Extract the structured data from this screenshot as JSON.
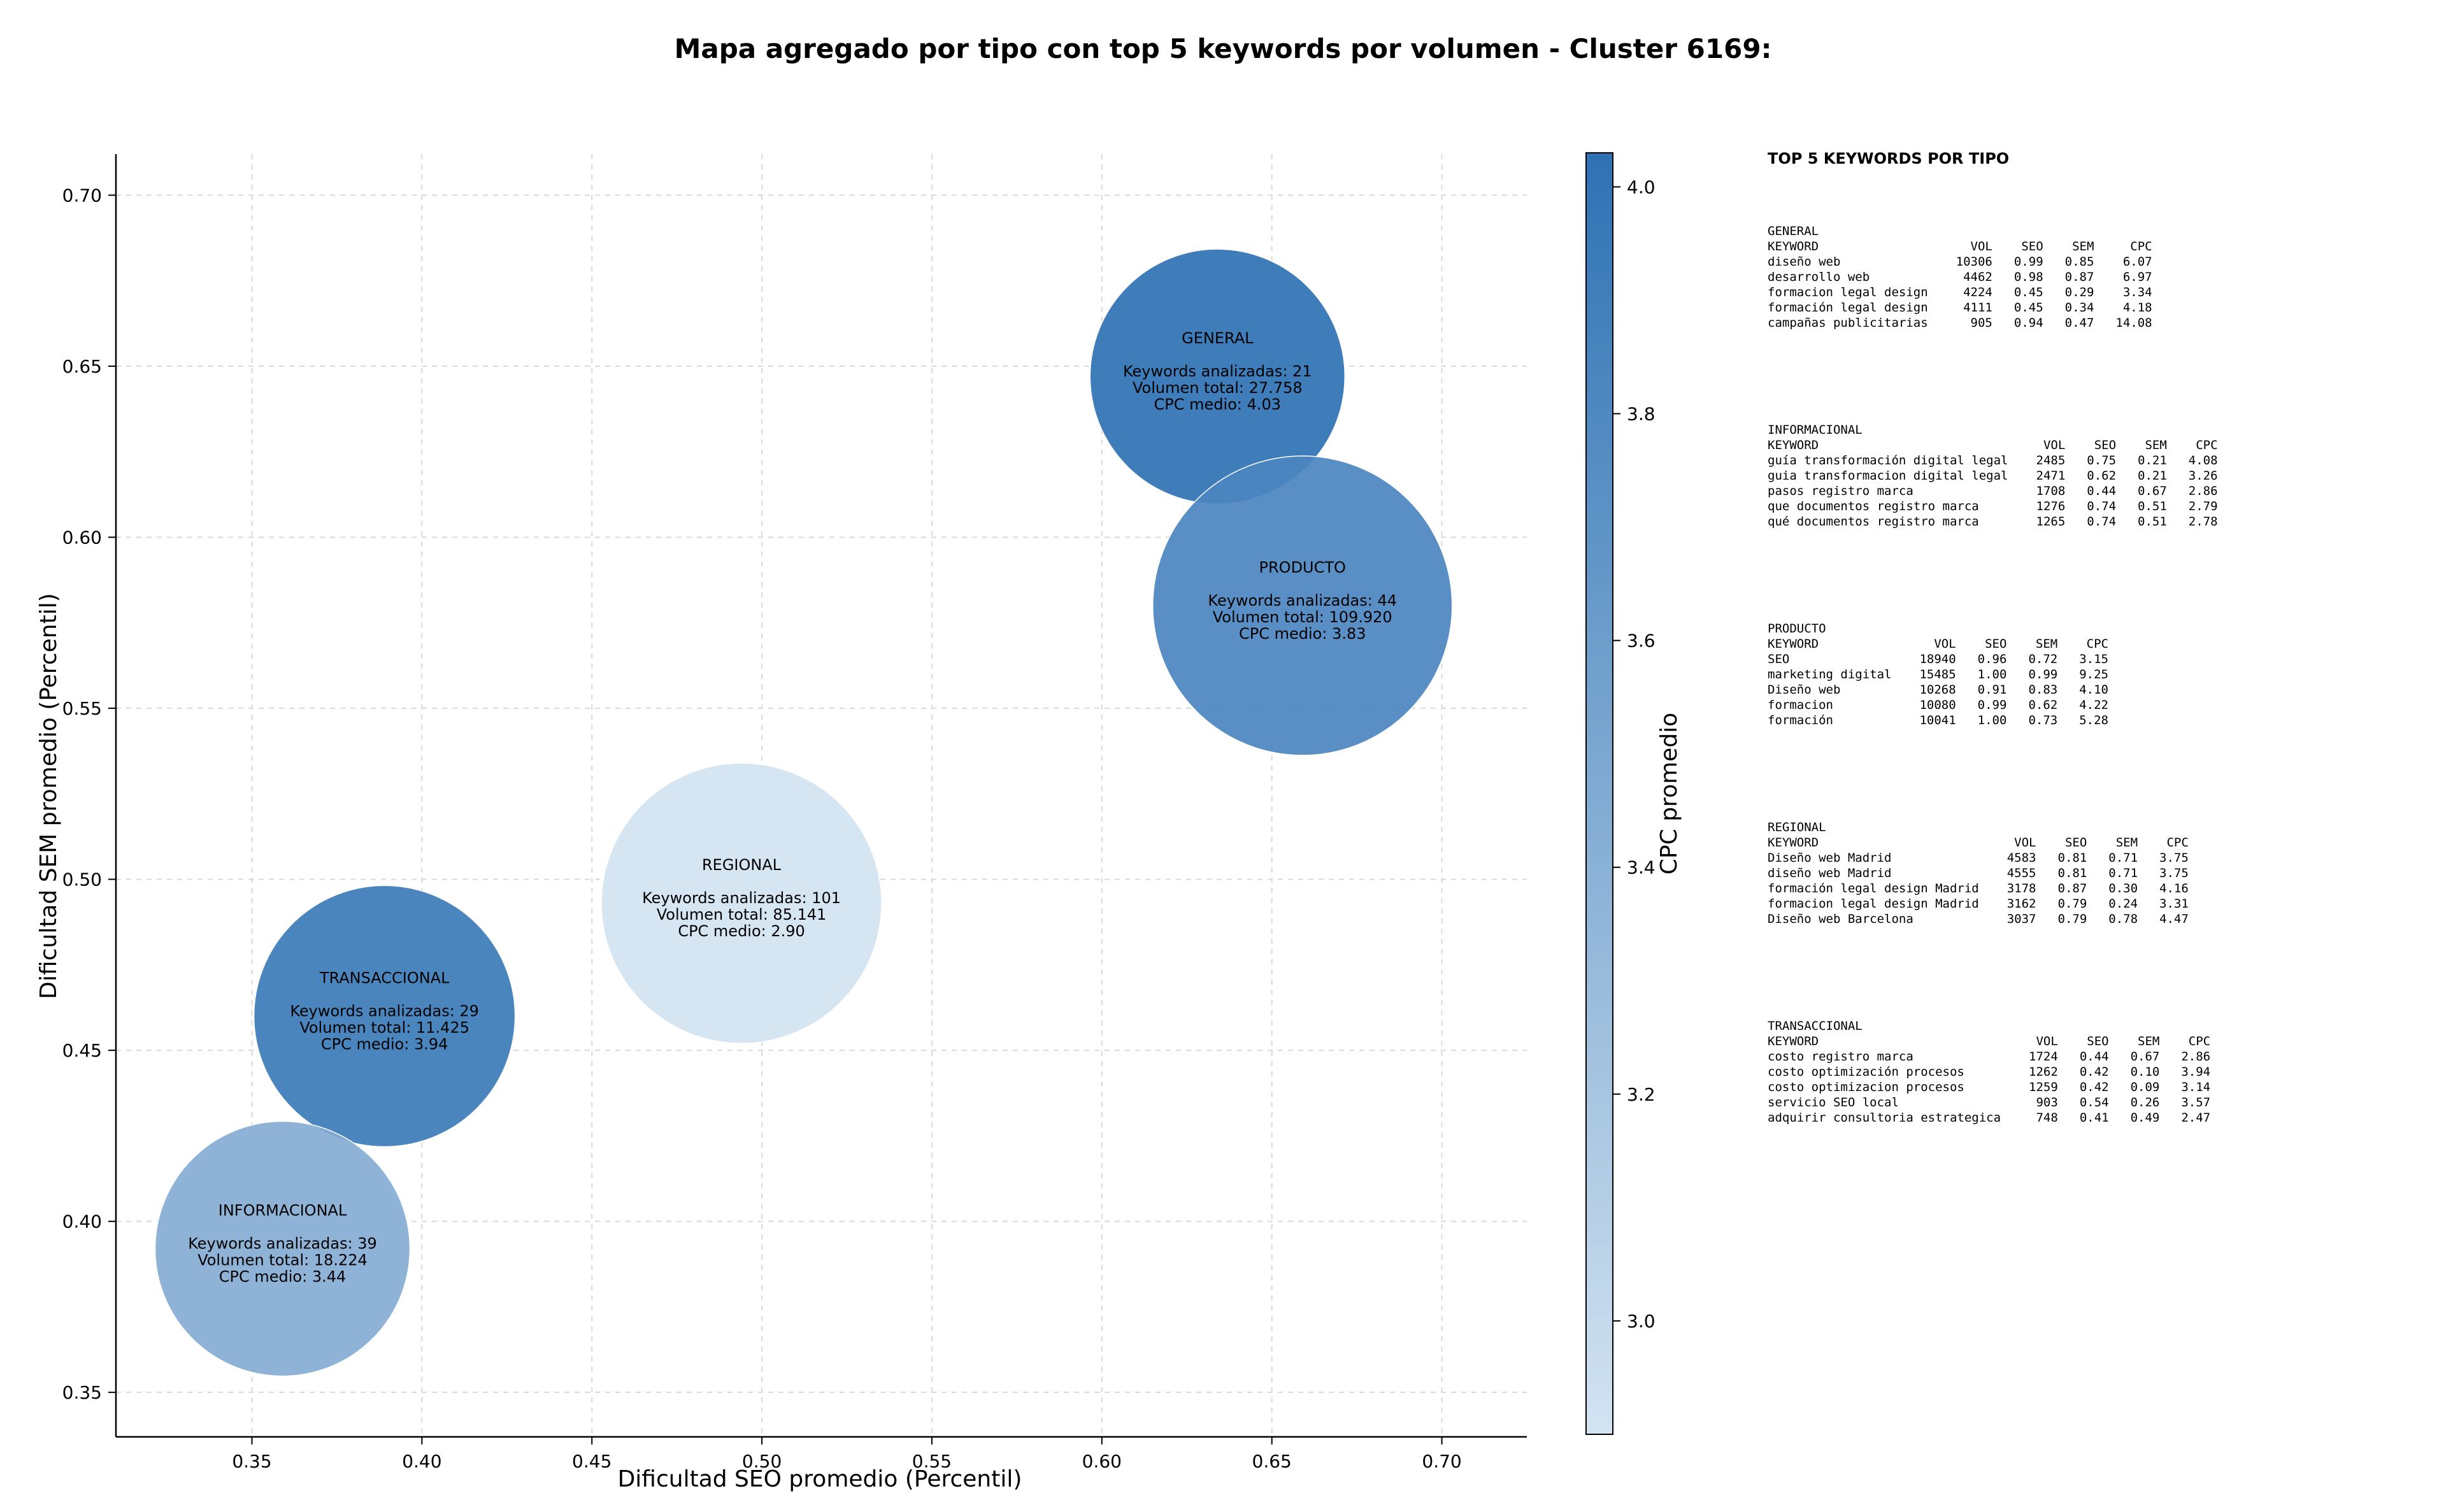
{
  "chart_data": {
    "type": "scatter",
    "title": "Mapa agregado por tipo con top 5 keywords por volumen - Cluster 6169:",
    "xlabel": "Dificultad SEO promedio (Percentil)",
    "ylabel": "Dificultad SEM promedio (Percentil)",
    "xlim": [
      0.31,
      0.725
    ],
    "ylim": [
      0.337,
      0.712
    ],
    "x_ticks": [
      "0.35",
      "0.40",
      "0.45",
      "0.50",
      "0.55",
      "0.60",
      "0.65",
      "0.70"
    ],
    "y_ticks": [
      "0.35",
      "0.40",
      "0.45",
      "0.50",
      "0.55",
      "0.60",
      "0.65",
      "0.70"
    ],
    "grid": true,
    "colorbar": {
      "label": "CPC promedio",
      "range": [
        2.9,
        4.03
      ],
      "ticks": [
        "3.0",
        "3.2",
        "3.4",
        "3.6",
        "3.8",
        "4.0"
      ],
      "color_low": "#d3e3f1",
      "color_high": "#2e72b4"
    },
    "points": [
      {
        "name": "GENERAL",
        "x": 0.634,
        "y": 0.647,
        "cpc": 4.03,
        "radius_px": 200,
        "lines": [
          "Keywords analizadas: 21",
          "Volumen total: 27.758",
          "CPC medio: 4.03"
        ]
      },
      {
        "name": "PRODUCTO",
        "x": 0.659,
        "y": 0.58,
        "cpc": 3.83,
        "radius_px": 235,
        "lines": [
          "Keywords analizadas: 44",
          "Volumen total: 109.920",
          "CPC medio: 3.83"
        ]
      },
      {
        "name": "REGIONAL",
        "x": 0.494,
        "y": 0.493,
        "cpc": 2.9,
        "radius_px": 220,
        "lines": [
          "Keywords analizadas: 101",
          "Volumen total: 85.141",
          "CPC medio: 2.90"
        ]
      },
      {
        "name": "TRANSACCIONAL",
        "x": 0.389,
        "y": 0.46,
        "cpc": 3.94,
        "radius_px": 205,
        "lines": [
          "Keywords analizadas: 29",
          "Volumen total: 11.425",
          "CPC medio: 3.94"
        ]
      },
      {
        "name": "INFORMACIONAL",
        "x": 0.359,
        "y": 0.392,
        "cpc": 3.44,
        "radius_px": 200,
        "lines": [
          "Keywords analizadas: 39",
          "Volumen total: 18.224",
          "CPC medio: 3.44"
        ]
      }
    ]
  },
  "side_panel": {
    "title": "TOP 5 KEYWORDS POR TIPO",
    "columns": [
      "KEYWORD",
      "VOL",
      "SEO",
      "SEM",
      "CPC"
    ],
    "groups": [
      {
        "name": "GENERAL",
        "rows": [
          [
            "diseño web",
            "10306",
            "0.99",
            "0.85",
            "6.07"
          ],
          [
            "desarrollo web",
            "4462",
            "0.98",
            "0.87",
            "6.97"
          ],
          [
            "formacion legal design",
            "4224",
            "0.45",
            "0.29",
            "3.34"
          ],
          [
            "formación legal design",
            "4111",
            "0.45",
            "0.34",
            "4.18"
          ],
          [
            "campañas publicitarias",
            "905",
            "0.94",
            "0.47",
            "14.08"
          ]
        ]
      },
      {
        "name": "INFORMACIONAL",
        "rows": [
          [
            "guía transformación digital legal",
            "2485",
            "0.75",
            "0.21",
            "4.08"
          ],
          [
            "guia transformacion digital legal",
            "2471",
            "0.62",
            "0.21",
            "3.26"
          ],
          [
            "pasos registro marca",
            "1708",
            "0.44",
            "0.67",
            "2.86"
          ],
          [
            "que documentos registro marca",
            "1276",
            "0.74",
            "0.51",
            "2.79"
          ],
          [
            "qué documentos registro marca",
            "1265",
            "0.74",
            "0.51",
            "2.78"
          ]
        ]
      },
      {
        "name": "PRODUCTO",
        "rows": [
          [
            "SEO",
            "18940",
            "0.96",
            "0.72",
            "3.15"
          ],
          [
            "marketing digital",
            "15485",
            "1.00",
            "0.99",
            "9.25"
          ],
          [
            "Diseño web",
            "10268",
            "0.91",
            "0.83",
            "4.10"
          ],
          [
            "formacion",
            "10080",
            "0.99",
            "0.62",
            "4.22"
          ],
          [
            "formación",
            "10041",
            "1.00",
            "0.73",
            "5.28"
          ]
        ]
      },
      {
        "name": "REGIONAL",
        "rows": [
          [
            "Diseño web Madrid",
            "4583",
            "0.81",
            "0.71",
            "3.75"
          ],
          [
            "diseño web Madrid",
            "4555",
            "0.81",
            "0.71",
            "3.75"
          ],
          [
            "formación legal design Madrid",
            "3178",
            "0.87",
            "0.30",
            "4.16"
          ],
          [
            "formacion legal design Madrid",
            "3162",
            "0.79",
            "0.24",
            "3.31"
          ],
          [
            "Diseño web Barcelona",
            "3037",
            "0.79",
            "0.78",
            "4.47"
          ]
        ]
      },
      {
        "name": "TRANSACCIONAL",
        "rows": [
          [
            "costo registro marca",
            "1724",
            "0.44",
            "0.67",
            "2.86"
          ],
          [
            "costo optimización procesos",
            "1262",
            "0.42",
            "0.10",
            "3.94"
          ],
          [
            "costo optimizacion procesos",
            "1259",
            "0.42",
            "0.09",
            "3.14"
          ],
          [
            "servicio SEO local",
            "903",
            "0.54",
            "0.26",
            "3.57"
          ],
          [
            "adquirir consultoria estrategica",
            "748",
            "0.41",
            "0.49",
            "2.47"
          ]
        ]
      }
    ]
  }
}
